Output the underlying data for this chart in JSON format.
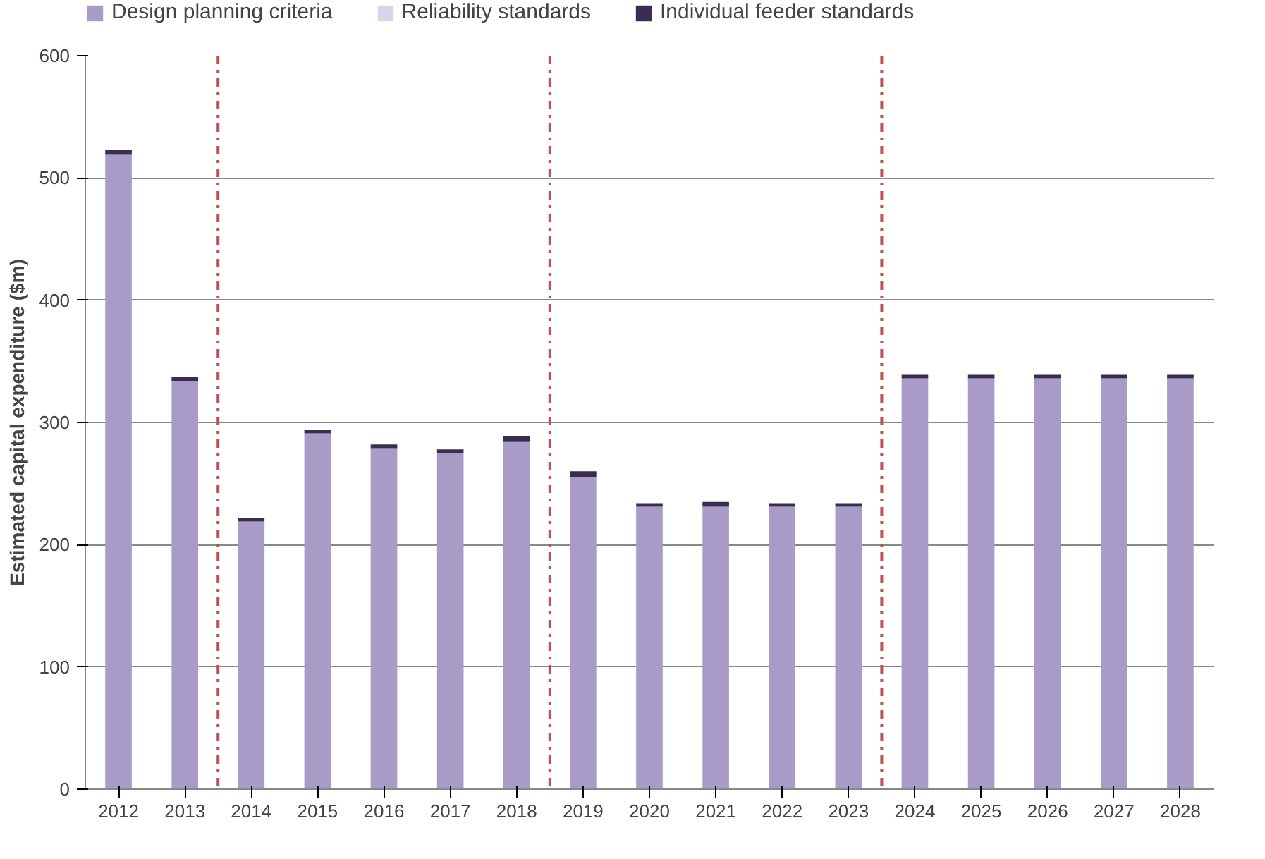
{
  "chart_data": {
    "type": "bar",
    "stacked": true,
    "ylabel": "Estimated capital expenditure ($m)",
    "x": [
      2012,
      2013,
      2014,
      2015,
      2016,
      2017,
      2018,
      2019,
      2020,
      2021,
      2022,
      2023,
      2024,
      2025,
      2026,
      2027,
      2028
    ],
    "xlim": [
      2011.5,
      2028.5
    ],
    "xticks": [
      2012,
      2013,
      2014,
      2015,
      2016,
      2017,
      2018,
      2019,
      2020,
      2021,
      2022,
      2023,
      2024,
      2025,
      2026,
      2027,
      2028
    ],
    "ylim": [
      0,
      600
    ],
    "yticks": [
      0,
      100,
      200,
      300,
      400,
      500,
      600
    ],
    "series": [
      {
        "name": "Design planning criteria",
        "color": "#a99bc8",
        "values": [
          519,
          334,
          219,
          291,
          279,
          275,
          284,
          255,
          231,
          231,
          231,
          231,
          336,
          336,
          336,
          336,
          336
        ]
      },
      {
        "name": "Reliability standards",
        "color": "#d9d3e6",
        "values": [
          0,
          0,
          0,
          0,
          0,
          0,
          0,
          0,
          0,
          0,
          0,
          0,
          0,
          0,
          0,
          0,
          0
        ]
      },
      {
        "name": "Individual feeder standards",
        "color": "#3a2d4f",
        "values": [
          4,
          3,
          3,
          3,
          3,
          3,
          5,
          5,
          3,
          4,
          3,
          3,
          3,
          3,
          3,
          3,
          3
        ]
      }
    ],
    "ref_lines": [
      {
        "axis": "x",
        "value": 2013.5,
        "color": "#c0504d",
        "line_style": "dashdot"
      },
      {
        "axis": "x",
        "value": 2018.5,
        "color": "#c0504d",
        "line_style": "dashdot"
      },
      {
        "axis": "x",
        "value": 2023.5,
        "color": "#c0504d",
        "line_style": "dashdot"
      }
    ],
    "grid": "y",
    "legend": "top"
  }
}
